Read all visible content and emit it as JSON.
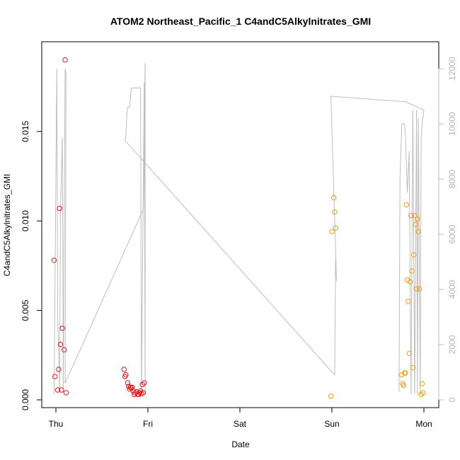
{
  "chart_data": {
    "type": "scatter",
    "title": "ATOM2 Northeast_Pacific_1 C4andC5Alkylnitrates_GMI",
    "xlabel": "Date",
    "ylabel": "C4andC5Alkylnitrates_GMI",
    "x_ticks": [
      "Thu",
      "Fri",
      "Sat",
      "Sun",
      "Mon"
    ],
    "ylim": [
      0,
      0.0193
    ],
    "y_ticks": [
      0.0,
      0.005,
      0.01,
      0.015
    ],
    "y_tick_labels": [
      "0.000",
      "0.005",
      "0.010",
      "0.015"
    ],
    "y2lim": [
      0,
      12800
    ],
    "y2_ticks": [
      0,
      2000,
      4000,
      6000,
      8000,
      10000,
      12000
    ],
    "y2_tick_labels": [
      "0",
      "2000",
      "4000",
      "6000",
      "8000",
      "10000",
      "12000"
    ],
    "colors": {
      "red": "#e31a1c",
      "orange": "#f39c12",
      "line": "#bdbdbd",
      "axis": "#000000"
    },
    "series": [
      {
        "color": "red",
        "points": [
          [
            -0.02,
            0.0078
          ],
          [
            -0.01,
            0.0013
          ],
          [
            0.02,
            0.00055
          ],
          [
            0.03,
            0.0017
          ],
          [
            0.04,
            0.0107
          ],
          [
            0.05,
            0.0031
          ],
          [
            0.06,
            0.00055
          ],
          [
            0.07,
            0.004
          ],
          [
            0.09,
            0.0028
          ],
          [
            0.1,
            0.019
          ],
          [
            0.11,
            0.0004
          ],
          [
            0.74,
            0.0017
          ],
          [
            0.75,
            0.0013
          ],
          [
            0.76,
            0.0014
          ],
          [
            0.78,
            0.00095
          ],
          [
            0.79,
            0.00075
          ],
          [
            0.8,
            0.0006
          ],
          [
            0.81,
            0.0007
          ],
          [
            0.82,
            0.00065
          ],
          [
            0.83,
            0.0007
          ],
          [
            0.84,
            0.0005
          ],
          [
            0.85,
            0.0003
          ],
          [
            0.86,
            0.0004
          ],
          [
            0.88,
            0.00045
          ],
          [
            0.89,
            0.0003
          ],
          [
            0.9,
            0.0003
          ],
          [
            0.91,
            0.0004
          ],
          [
            0.92,
            0.0005
          ],
          [
            0.93,
            0.00035
          ],
          [
            0.94,
            0.00085
          ],
          [
            0.95,
            0.0004
          ],
          [
            0.96,
            0.00095
          ]
        ]
      },
      {
        "color": "orange",
        "points": [
          [
            2.99,
            0.0002
          ],
          [
            3.0,
            0.0094
          ],
          [
            3.02,
            0.0113
          ],
          [
            3.03,
            0.0105
          ],
          [
            3.04,
            0.0096
          ],
          [
            3.76,
            0.0014
          ],
          [
            3.77,
            0.0009
          ],
          [
            3.78,
            0.0008
          ],
          [
            3.79,
            0.0015
          ],
          [
            3.8,
            0.0015
          ],
          [
            3.81,
            0.0109
          ],
          [
            3.82,
            0.0067
          ],
          [
            3.83,
            0.0055
          ],
          [
            3.84,
            0.0026
          ],
          [
            3.85,
            0.0066
          ],
          [
            3.86,
            0.0103
          ],
          [
            3.87,
            0.0072
          ],
          [
            3.88,
            0.0018
          ],
          [
            3.89,
            0.0081
          ],
          [
            3.9,
            0.0103
          ],
          [
            3.91,
            0.0098
          ],
          [
            3.92,
            0.0062
          ],
          [
            3.93,
            0.0101
          ],
          [
            3.94,
            0.0094
          ],
          [
            3.95,
            0.0062
          ],
          [
            3.97,
            0.0003
          ],
          [
            3.98,
            0.0009
          ],
          [
            3.99,
            0.0004
          ]
        ]
      }
    ],
    "line": {
      "axis": "right",
      "points": [
        [
          -0.02,
          200
        ],
        [
          0.01,
          12000
        ],
        [
          0.02,
          3000
        ],
        [
          0.04,
          400
        ],
        [
          0.05,
          7000
        ],
        [
          0.07,
          9500
        ],
        [
          0.08,
          400
        ],
        [
          0.1,
          12000
        ],
        [
          0.11,
          11800
        ],
        [
          0.1,
          600
        ],
        [
          0.95,
          6900
        ],
        [
          0.97,
          12200
        ],
        [
          0.97,
          200
        ],
        [
          0.96,
          11500
        ],
        [
          0.93,
          200
        ],
        [
          0.92,
          11300
        ],
        [
          0.88,
          11300
        ],
        [
          0.85,
          11300
        ],
        [
          0.82,
          11300
        ],
        [
          0.8,
          10600
        ],
        [
          0.78,
          10600
        ],
        [
          0.77,
          10300
        ],
        [
          0.76,
          9500
        ],
        [
          0.75,
          9400
        ],
        [
          3.03,
          900
        ],
        [
          3.04,
          5100
        ],
        [
          3.05,
          4300
        ],
        [
          2.99,
          11000
        ],
        [
          3.8,
          10800
        ],
        [
          4.0,
          10500
        ],
        [
          3.98,
          10000
        ],
        [
          3.97,
          9500
        ],
        [
          3.96,
          200
        ],
        [
          3.94,
          10200
        ],
        [
          3.93,
          200
        ],
        [
          3.92,
          10500
        ],
        [
          3.9,
          200
        ],
        [
          3.88,
          10500
        ],
        [
          3.86,
          200
        ],
        [
          3.84,
          9000
        ],
        [
          3.82,
          7500
        ],
        [
          3.8,
          9500
        ],
        [
          3.79,
          10000
        ],
        [
          3.76,
          10000
        ],
        [
          3.74,
          8000
        ],
        [
          3.73,
          300
        ]
      ]
    }
  }
}
